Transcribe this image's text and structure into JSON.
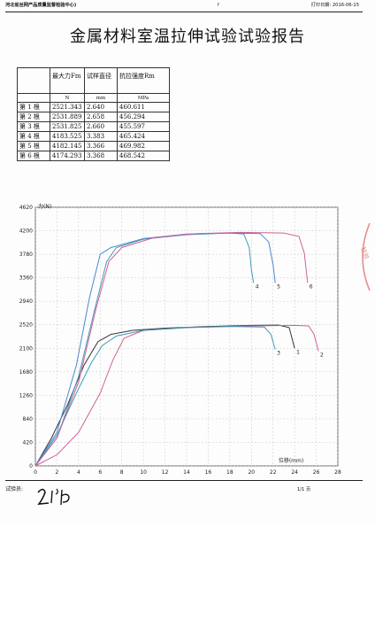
{
  "header": {
    "org": "河北省丝网产品质量监督检验中心)",
    "mark": "f",
    "print_date_label": "打印日期:",
    "print_date": "2016-06-15"
  },
  "title": "金属材料室温拉伸试验试验报告",
  "table": {
    "headers": [
      "",
      "最大力Fm",
      "试样直径",
      "抗拉强度Rm"
    ],
    "units": [
      "",
      "N",
      "mm",
      "MPa"
    ],
    "rows": [
      [
        "第 1 根",
        "2521.343",
        "2.640",
        "460.611"
      ],
      [
        "第 2 根",
        "2531.889",
        "2.658",
        "456.294"
      ],
      [
        "第 3 根",
        "2531.825",
        "2.660",
        "455.597"
      ],
      [
        "第 4 根",
        "4183.525",
        "3.383",
        "465.424"
      ],
      [
        "第 5 根",
        "4182.145",
        "3.366",
        "469.982"
      ],
      [
        "第 6 根",
        "4174.293",
        "3.368",
        "468.542"
      ]
    ]
  },
  "chart_data": {
    "type": "line",
    "ylabel": "力(N)",
    "xlabel": "位移(mm)",
    "xlim": [
      0,
      28
    ],
    "ylim": [
      0,
      4620
    ],
    "xticks": [
      0,
      2,
      4,
      6,
      8,
      10,
      12,
      14,
      16,
      18,
      20,
      22,
      24,
      26,
      28
    ],
    "yticks": [
      0,
      420,
      840,
      1260,
      1680,
      2100,
      2520,
      2940,
      3360,
      3780,
      4200,
      4620
    ],
    "grid": true,
    "series": [
      {
        "name": "1",
        "color": "#333333",
        "points": [
          [
            0,
            0
          ],
          [
            1.5,
            500
          ],
          [
            3,
            1100
          ],
          [
            4.5,
            1800
          ],
          [
            5.8,
            2220
          ],
          [
            7,
            2350
          ],
          [
            9,
            2420
          ],
          [
            12,
            2460
          ],
          [
            16,
            2490
          ],
          [
            20,
            2510
          ],
          [
            22.5,
            2515
          ],
          [
            23.5,
            2470
          ],
          [
            24,
            2100
          ]
        ]
      },
      {
        "name": "2",
        "color": "#d0609a",
        "points": [
          [
            0,
            0
          ],
          [
            2,
            200
          ],
          [
            4,
            600
          ],
          [
            6,
            1300
          ],
          [
            7.2,
            1900
          ],
          [
            8.2,
            2280
          ],
          [
            10,
            2420
          ],
          [
            14,
            2470
          ],
          [
            20,
            2500
          ],
          [
            24,
            2510
          ],
          [
            25.3,
            2500
          ],
          [
            25.8,
            2350
          ],
          [
            26.2,
            2050
          ]
        ]
      },
      {
        "name": "3",
        "color": "#3f9ab8",
        "points": [
          [
            0,
            0
          ],
          [
            2,
            550
          ],
          [
            3.8,
            1300
          ],
          [
            5.2,
            1850
          ],
          [
            6.2,
            2150
          ],
          [
            7.5,
            2320
          ],
          [
            10,
            2420
          ],
          [
            14,
            2470
          ],
          [
            18,
            2490
          ],
          [
            21.2,
            2480
          ],
          [
            21.8,
            2350
          ],
          [
            22.2,
            2080
          ]
        ]
      },
      {
        "name": "4",
        "color": "#3f9ab8",
        "points": [
          [
            0,
            0
          ],
          [
            2,
            500
          ],
          [
            4,
            1600
          ],
          [
            5.5,
            2800
          ],
          [
            6.6,
            3650
          ],
          [
            7.5,
            3900
          ],
          [
            10,
            4050
          ],
          [
            14,
            4130
          ],
          [
            18,
            4160
          ],
          [
            19.3,
            4140
          ],
          [
            19.8,
            3900
          ],
          [
            20,
            3500
          ],
          [
            20.2,
            3270
          ]
        ]
      },
      {
        "name": "5",
        "color": "#4a88d0",
        "points": [
          [
            0,
            0
          ],
          [
            2,
            600
          ],
          [
            3.8,
            1800
          ],
          [
            5,
            3000
          ],
          [
            6,
            3780
          ],
          [
            7,
            3900
          ],
          [
            10,
            4060
          ],
          [
            14,
            4140
          ],
          [
            18,
            4160
          ],
          [
            20.8,
            4150
          ],
          [
            21.6,
            4000
          ],
          [
            22,
            3600
          ],
          [
            22.2,
            3270
          ]
        ]
      },
      {
        "name": "6",
        "color": "#d0609a",
        "points": [
          [
            0,
            0
          ],
          [
            2,
            500
          ],
          [
            4,
            1500
          ],
          [
            5.6,
            2800
          ],
          [
            6.8,
            3650
          ],
          [
            8,
            3900
          ],
          [
            11,
            4080
          ],
          [
            15,
            4150
          ],
          [
            19,
            4170
          ],
          [
            23,
            4160
          ],
          [
            24.4,
            4100
          ],
          [
            24.9,
            3800
          ],
          [
            25.2,
            3270
          ]
        ]
      }
    ]
  },
  "footer": {
    "tester_label": "试验员:",
    "page": "1/1 页"
  }
}
